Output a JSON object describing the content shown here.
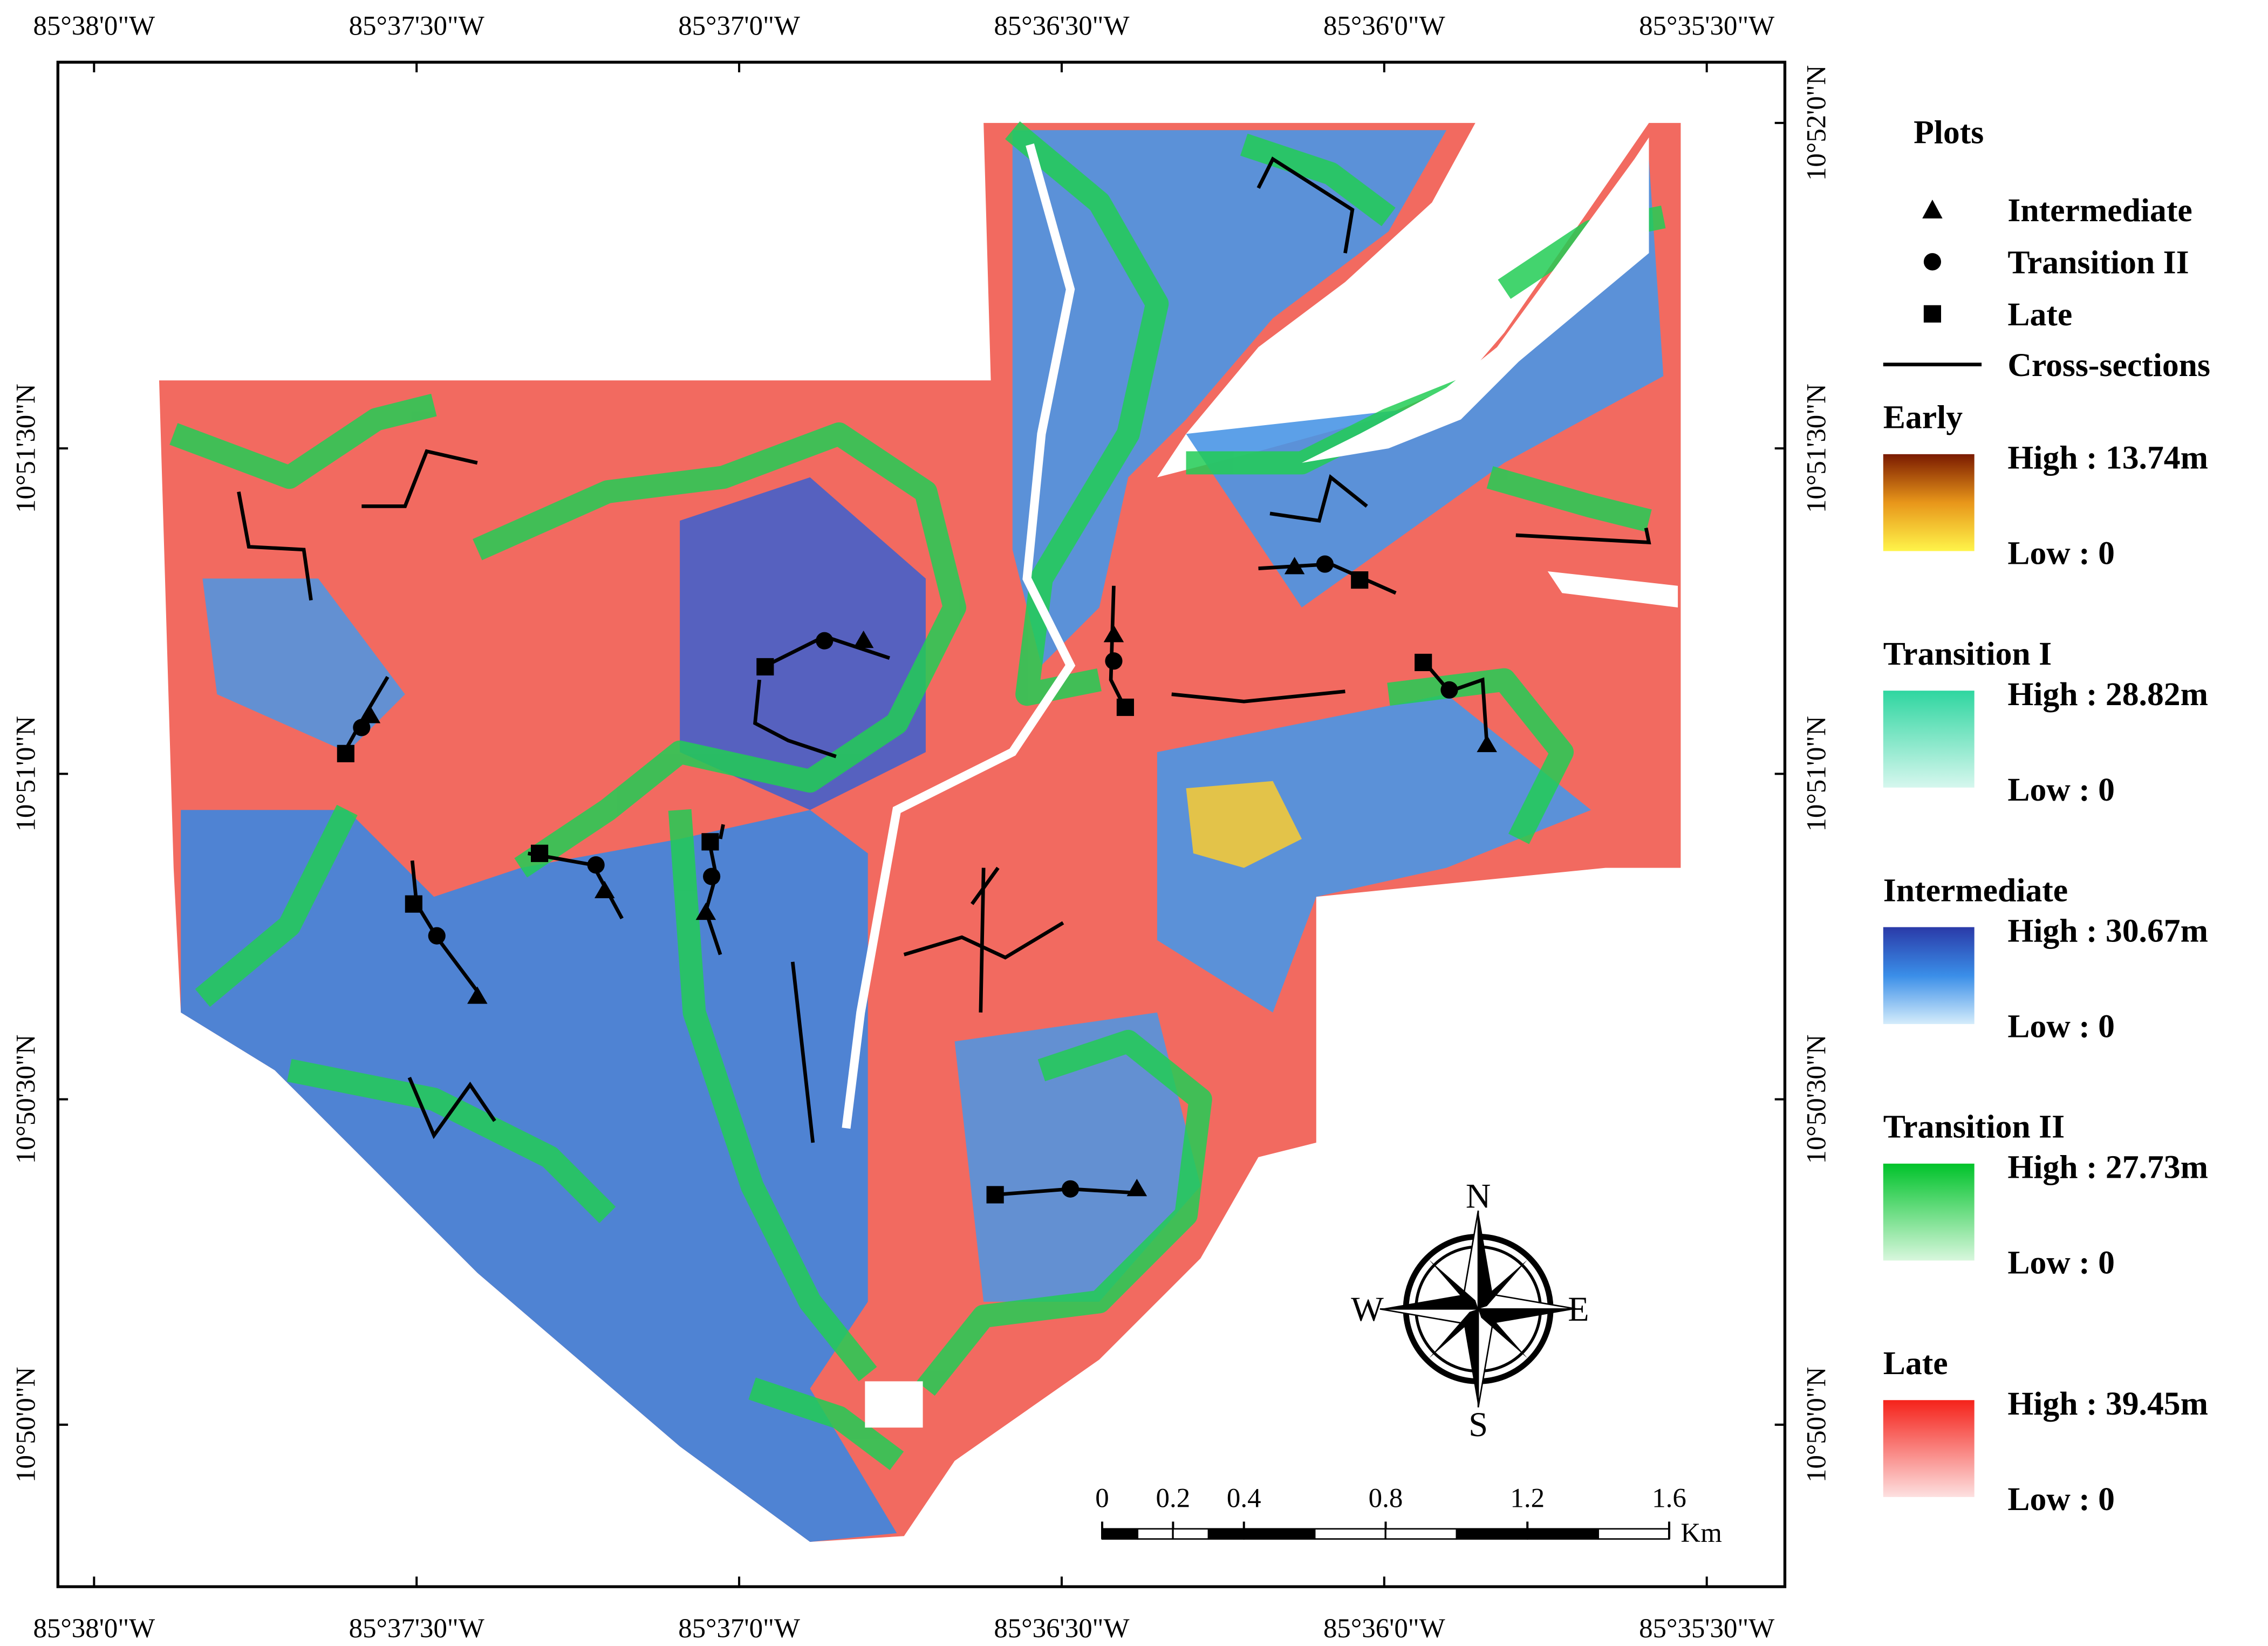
{
  "map": {
    "lon_labels": [
      "85°38'0\"W",
      "85°37'30\"W",
      "85°37'0\"W",
      "85°36'30\"W",
      "85°36'0\"W",
      "85°35'30\"W"
    ],
    "lat_labels_left": [
      "10°51'30\"N",
      "10°51'0\"N",
      "10°50'30\"N",
      "10°50'0\"N"
    ],
    "lat_labels_right": [
      "10°52'0\"N",
      "10°51'30\"N",
      "10°51'0\"N",
      "10°50'30\"N",
      "10°50'0\"N"
    ],
    "legend": {
      "title": "Plots",
      "symbols": [
        "Intermediate",
        "Transition II",
        "Late"
      ],
      "line": "Cross-sections",
      "ramps": [
        {
          "name": "Early",
          "high": "High : 13.74m",
          "low": "Low : 0"
        },
        {
          "name": "Transition I",
          "high": "High : 28.82m",
          "low": "Low : 0"
        },
        {
          "name": "Intermediate",
          "high": "High : 30.67m",
          "low": "Low : 0"
        },
        {
          "name": "Transition II",
          "high": "High : 27.73m",
          "low": "Low : 0"
        },
        {
          "name": "Late",
          "high": "High : 39.45m",
          "low": "Low : 0"
        }
      ]
    },
    "scale_bar": {
      "ticks": [
        0,
        0.2,
        0.4,
        0.8,
        1.2,
        1.6
      ],
      "unit": "Km"
    },
    "compass": {
      "n": "N",
      "s": "S",
      "e": "E",
      "w": "W"
    }
  }
}
